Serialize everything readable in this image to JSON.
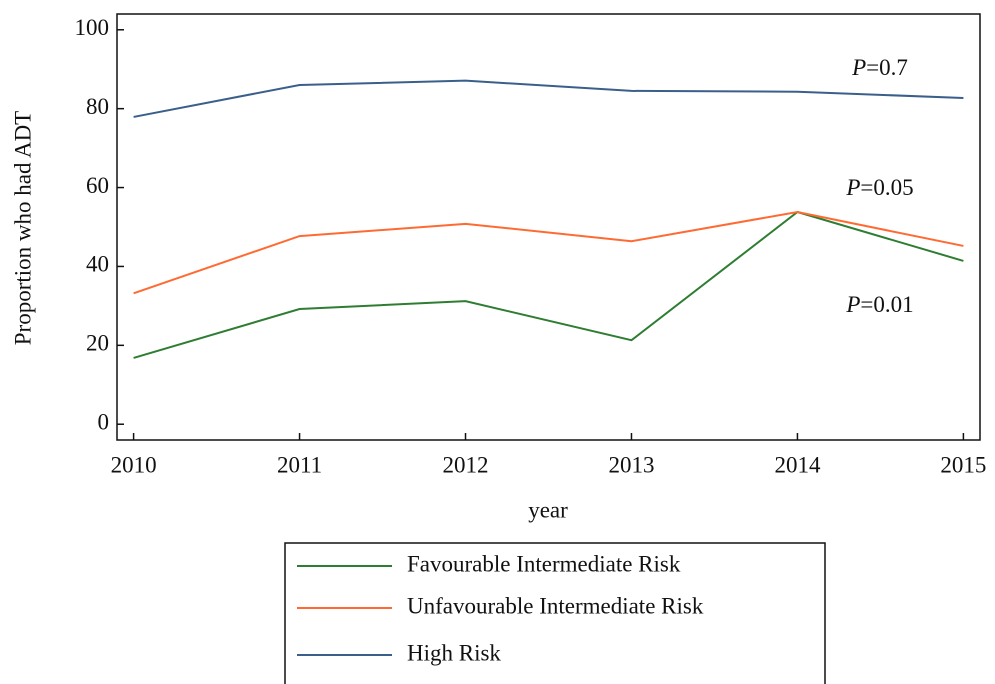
{
  "chart_data": {
    "type": "line",
    "x": [
      2010,
      2011,
      2012,
      2013,
      2014,
      2015
    ],
    "xlabel": "year",
    "ylabel": "Proportion who had ADT",
    "series": [
      {
        "name": "Favourable Intermediate Risk",
        "color": "#2e7d32",
        "values": [
          16.8,
          29.2,
          31.2,
          21.3,
          53.8,
          41.4
        ]
      },
      {
        "name": "Unfavourable Intermediate Risk",
        "color": "#ff6a33",
        "values": [
          33.2,
          47.7,
          50.8,
          46.4,
          53.8,
          45.2
        ]
      },
      {
        "name": "High Risk",
        "color": "#3a5f8a",
        "values": [
          77.9,
          86.0,
          87.1,
          84.5,
          84.3,
          82.7
        ]
      }
    ],
    "annotations": [
      "P=0.01",
      "P=0.05",
      "P=0.7"
    ],
    "xlim": [
      2009.9,
      2015.1
    ],
    "xticks": [
      2010,
      2011,
      2012,
      2013,
      2014,
      2015
    ],
    "ylim": [
      -4,
      104
    ],
    "yticks": [
      0,
      20,
      40,
      60,
      80,
      100
    ]
  }
}
